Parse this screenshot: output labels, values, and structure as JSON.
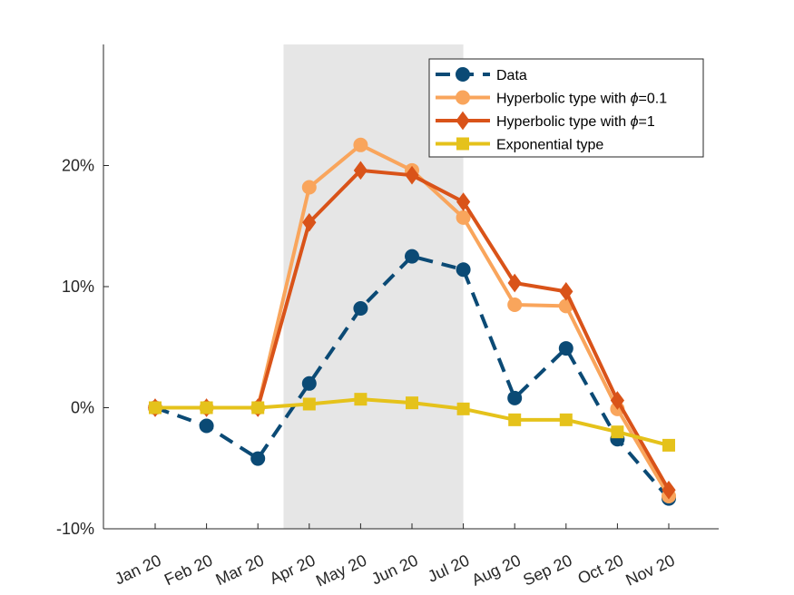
{
  "chart_data": {
    "type": "line",
    "categories": [
      "Jan 20",
      "Feb 20",
      "Mar 20",
      "Apr 20",
      "May 20",
      "Jun 20",
      "Jul 20",
      "Aug 20",
      "Sep 20",
      "Oct 20",
      "Nov 20"
    ],
    "ylim": [
      -10,
      30
    ],
    "yticks": [
      -10,
      0,
      10,
      20
    ],
    "ytick_labels": [
      "-10%",
      "0%",
      "10%",
      "20%"
    ],
    "shaded_region": [
      "Apr 20",
      "Jul 20"
    ],
    "grid": false,
    "legend_position": "top-right",
    "series": [
      {
        "name": "Data",
        "color": "#0b4a75",
        "style": "dashed",
        "marker": "circle",
        "values": [
          0,
          -1.5,
          -4.2,
          2.0,
          8.2,
          12.5,
          11.4,
          0.8,
          4.9,
          -2.6,
          -7.5
        ]
      },
      {
        "name_prefix": "Hyperbolic type with ",
        "name_symbol": "ϕ",
        "name_suffix": "=0.1",
        "color": "#f9a55c",
        "style": "solid",
        "marker": "circle",
        "values": [
          0,
          0,
          0,
          18.2,
          21.7,
          19.6,
          15.7,
          8.5,
          8.4,
          -0.1,
          -7.3
        ]
      },
      {
        "name_prefix": "Hyperbolic type with ",
        "name_symbol": "ϕ",
        "name_suffix": "=1",
        "color": "#d95319",
        "style": "solid",
        "marker": "diamond",
        "values": [
          0,
          0,
          0,
          15.3,
          19.6,
          19.2,
          17.0,
          10.3,
          9.6,
          0.6,
          -6.8
        ]
      },
      {
        "name": "Exponential type",
        "color": "#e5c21b",
        "style": "solid",
        "marker": "square",
        "values": [
          0,
          0,
          0,
          0.3,
          0.7,
          0.4,
          -0.1,
          -1.0,
          -1.0,
          -2.0,
          -3.1
        ]
      }
    ]
  }
}
